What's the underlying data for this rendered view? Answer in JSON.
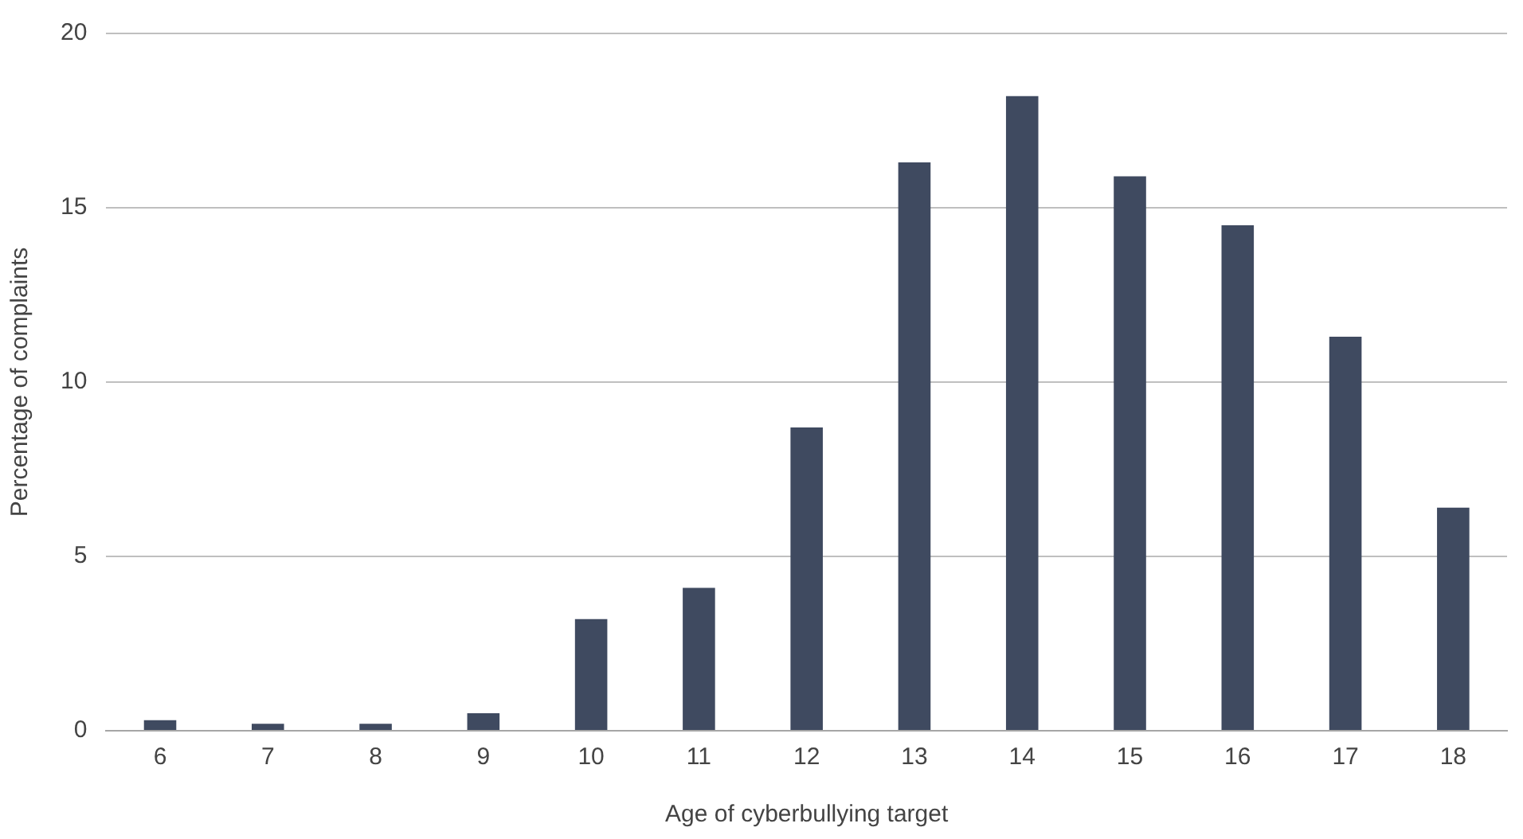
{
  "chart_data": {
    "type": "bar",
    "xlabel": "Age of cyberbullying target",
    "ylabel": "Percentage of complaints",
    "categories": [
      "6",
      "7",
      "8",
      "9",
      "10",
      "11",
      "12",
      "13",
      "14",
      "15",
      "16",
      "17",
      "18"
    ],
    "values": [
      0.3,
      0.2,
      0.2,
      0.5,
      3.2,
      4.1,
      8.7,
      16.3,
      18.2,
      15.9,
      14.5,
      11.3,
      6.4
    ],
    "color": "#3f4a60",
    "ylim": [
      0,
      20
    ],
    "yticks": [
      0,
      5,
      10,
      15,
      20
    ],
    "grid": "y",
    "legend": false
  }
}
